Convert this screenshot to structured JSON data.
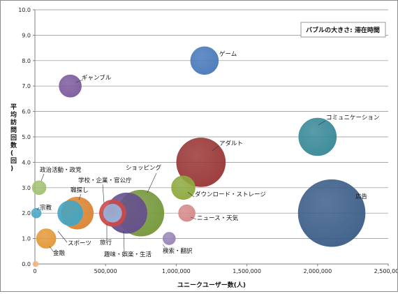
{
  "chart_data": {
    "type": "bubble",
    "xlabel": "ユニークユーザー数(人)",
    "ylabel": "平均訪問回数(回)",
    "size_note": "バブルの大きさ: 滞在時間",
    "xlim": [
      0,
      2500000
    ],
    "ylim": [
      0,
      10
    ],
    "x_ticks": [
      "0",
      "500,000",
      "1,000,000",
      "1,500,000",
      "2,000,000",
      "2,500,000"
    ],
    "y_ticks": [
      "0.0",
      "1.0",
      "2.0",
      "3.0",
      "4.0",
      "5.0",
      "6.0",
      "7.0",
      "8.0",
      "9.0",
      "10.0"
    ],
    "grid": true,
    "bubbles": [
      {
        "label": "広告",
        "x": 2100000,
        "y": 2.0,
        "size": 48,
        "color": "#3E5F8A"
      },
      {
        "label": "コミュニケーション",
        "x": 2000000,
        "y": 5.0,
        "size": 27,
        "color": "#3A8A98"
      },
      {
        "label": "ゲーム",
        "x": 1200000,
        "y": 8.0,
        "size": 20,
        "color": "#4A7BBA"
      },
      {
        "label": "アダルト",
        "x": 1175000,
        "y": 4.0,
        "size": 35,
        "color": "#9A3838"
      },
      {
        "label": "ダウンロード・ストレージ",
        "x": 1050000,
        "y": 3.0,
        "size": 17,
        "color": "#8EAA40"
      },
      {
        "label": "ニュース・天気",
        "x": 1075000,
        "y": 2.0,
        "size": 12,
        "color": "#D68B8B"
      },
      {
        "label": "検索・翻訳",
        "x": 950000,
        "y": 1.0,
        "size": 9,
        "color": "#9A86B8"
      },
      {
        "label": "ショッピング",
        "x": 750000,
        "y": 2.0,
        "size": 33,
        "color": "#76983C"
      },
      {
        "label": "趣味・娯楽・生活",
        "x": 650000,
        "y": 2.0,
        "size": 29,
        "color": "#66508E"
      },
      {
        "label": "学校・企業・官公庁",
        "x": 550000,
        "y": 2.0,
        "size": 19,
        "color": "#CE4848"
      },
      {
        "label": "旅行",
        "x": 550000,
        "y": 2.0,
        "size": 13,
        "color": "#95B4DC"
      },
      {
        "label": "ギャンブル",
        "x": 250000,
        "y": 7.0,
        "size": 16,
        "color": "#7E5C9E"
      },
      {
        "label": "職探し",
        "x": 300000,
        "y": 2.0,
        "size": 23,
        "color": "#DB8535"
      },
      {
        "label": "スポーツ",
        "x": 250000,
        "y": 2.0,
        "size": 18,
        "color": "#43A5C3"
      },
      {
        "label": "政治活動・政党",
        "x": 30000,
        "y": 3.0,
        "size": 10,
        "color": "#A3C274"
      },
      {
        "label": "宗教",
        "x": 10000,
        "y": 2.0,
        "size": 7,
        "color": "#4FA9C9"
      },
      {
        "label": "金融",
        "x": 80000,
        "y": 1.0,
        "size": 14,
        "color": "#E39A3A"
      },
      {
        "label": "",
        "x": 5000,
        "y": 0.0,
        "size": 4,
        "color": "#F2B880"
      }
    ]
  }
}
